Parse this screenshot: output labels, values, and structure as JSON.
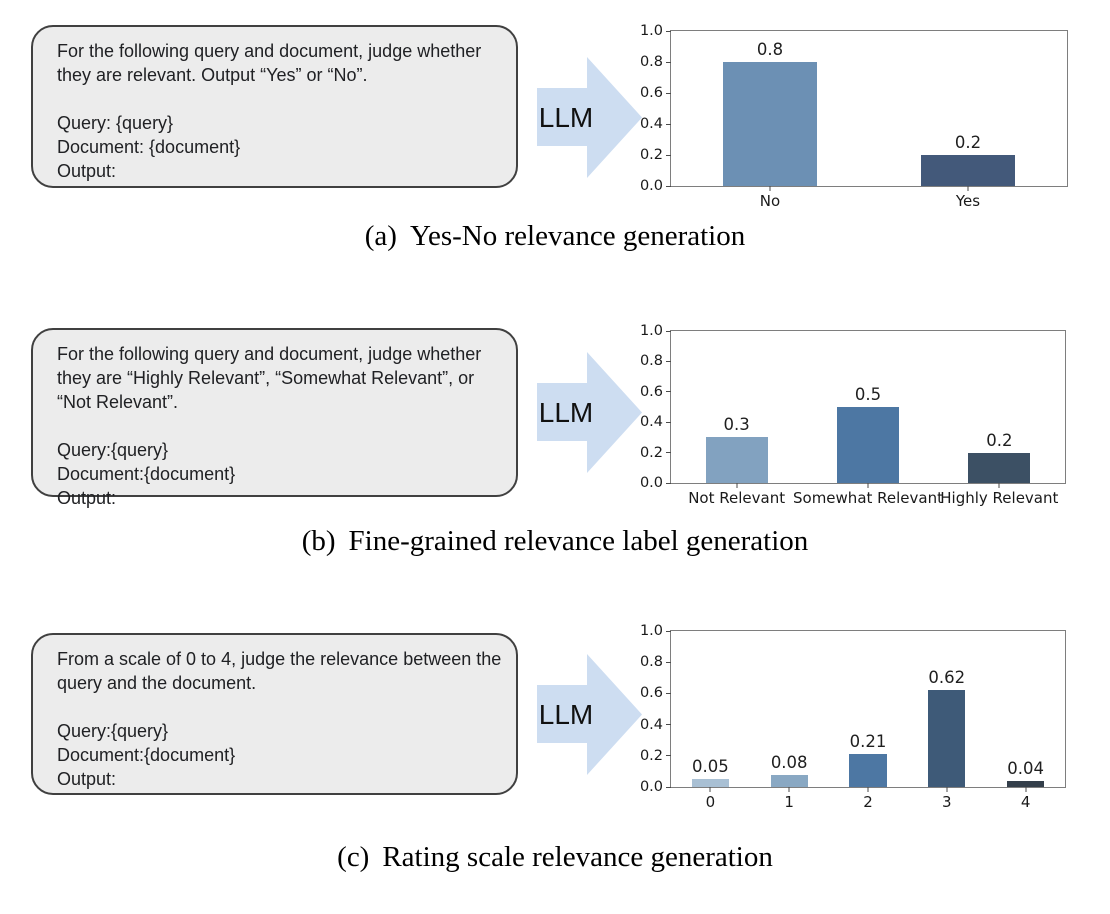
{
  "figure": {
    "panels": [
      {
        "prompt": {
          "body": "For the following query and document, judge whether they are relevant. Output “Yes” or “No”.",
          "fields": [
            "Query: {query}",
            "Document: {document}",
            "Output:"
          ]
        },
        "arrow_label": "LLM",
        "caption": {
          "tag": "(a)",
          "text": "Yes-No relevance generation"
        }
      },
      {
        "prompt": {
          "body": "For the following query and document, judge whether they are “Highly Relevant”, “Somewhat Relevant”, or “Not Relevant”.",
          "fields": [
            "Query:{query}",
            "Document:{document}",
            "Output:"
          ]
        },
        "arrow_label": "LLM",
        "caption": {
          "tag": "(b)",
          "text": "Fine-grained relevance label generation"
        }
      },
      {
        "prompt": {
          "body": "From a scale of 0 to 4, judge the relevance between the query and the document.",
          "fields": [
            "Query:{query}",
            "Document:{document}",
            "Output:"
          ]
        },
        "arrow_label": "LLM",
        "caption": {
          "tag": "(c)",
          "text": "Rating scale relevance generation"
        }
      }
    ]
  },
  "chart_data": [
    {
      "type": "bar",
      "categories": [
        "No",
        "Yes"
      ],
      "values": [
        0.8,
        0.2
      ],
      "bar_labels": [
        "0.8",
        "0.2"
      ],
      "colors": [
        "#6c90b4",
        "#43597a"
      ],
      "ylim": [
        0,
        1
      ],
      "yticks": [
        0,
        0.2,
        0.4,
        0.6,
        0.8,
        1.0
      ],
      "ytick_labels": [
        "0.0",
        "0.2",
        "0.4",
        "0.6",
        "0.8",
        "1.0"
      ],
      "title": "",
      "xlabel": "",
      "ylabel": "",
      "grid": false,
      "legend": false,
      "bar_fraction": 0.47
    },
    {
      "type": "bar",
      "categories": [
        "Not Relevant",
        "Somewhat Relevant",
        "Highly Relevant"
      ],
      "values": [
        0.3,
        0.5,
        0.2
      ],
      "bar_labels": [
        "0.3",
        "0.5",
        "0.2"
      ],
      "colors": [
        "#82a2c0",
        "#4d77a3",
        "#3c5064"
      ],
      "ylim": [
        0,
        1
      ],
      "yticks": [
        0,
        0.2,
        0.4,
        0.6,
        0.8,
        1.0
      ],
      "ytick_labels": [
        "0.0",
        "0.2",
        "0.4",
        "0.6",
        "0.8",
        "1.0"
      ],
      "title": "",
      "xlabel": "",
      "ylabel": "",
      "grid": false,
      "legend": false,
      "bar_fraction": 0.47
    },
    {
      "type": "bar",
      "categories": [
        "0",
        "1",
        "2",
        "3",
        "4"
      ],
      "values": [
        0.05,
        0.08,
        0.21,
        0.62,
        0.04
      ],
      "bar_labels": [
        "0.05",
        "0.08",
        "0.21",
        "0.62",
        "0.04"
      ],
      "colors": [
        "#a9c0d4",
        "#89a8c3",
        "#4d77a3",
        "#3e5a78",
        "#333e4a"
      ],
      "ylim": [
        0,
        1
      ],
      "yticks": [
        0,
        0.2,
        0.4,
        0.6,
        0.8,
        1.0
      ],
      "ytick_labels": [
        "0.0",
        "0.2",
        "0.4",
        "0.6",
        "0.8",
        "1.0"
      ],
      "title": "",
      "xlabel": "",
      "ylabel": "",
      "grid": false,
      "legend": false,
      "bar_fraction": 0.47
    }
  ],
  "colors": {
    "arrow_fill": "#cdddf1",
    "prompt_box_bg": "#ececec",
    "prompt_box_border": "#404040",
    "axis_frame": "#7e7e7e"
  }
}
